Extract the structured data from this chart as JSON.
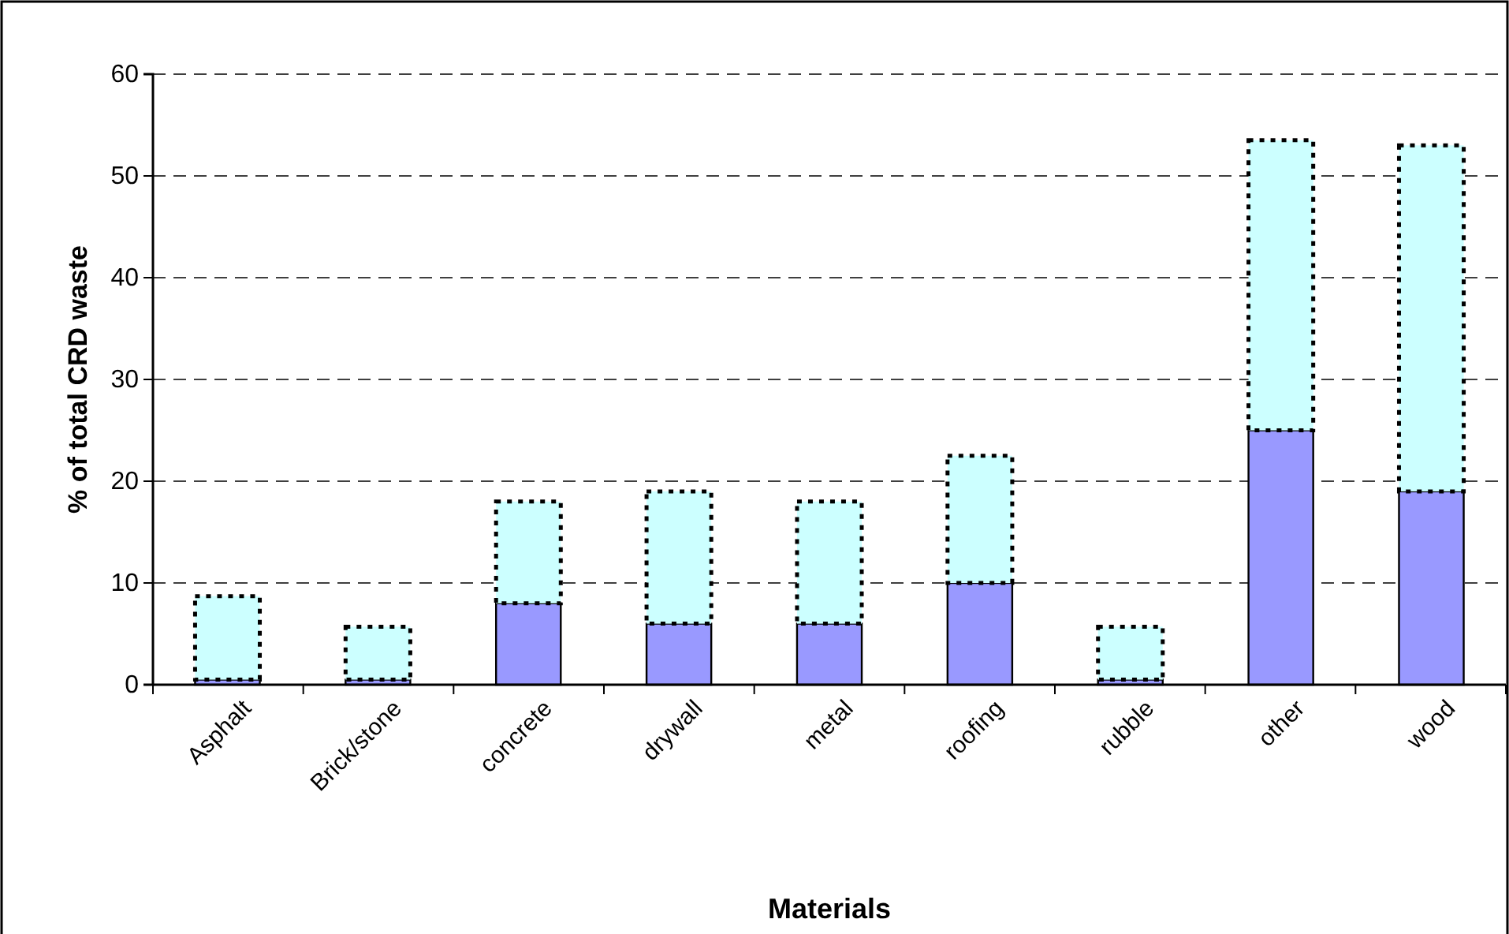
{
  "chart_data": {
    "type": "bar",
    "stacked": true,
    "xlabel": "Materials",
    "ylabel": "% of total CRD waste",
    "categories": [
      "Asphalt",
      "Brick/stone",
      "concrete",
      "drywall",
      "metal",
      "roofing",
      "rubble",
      "other",
      "wood"
    ],
    "series": [
      {
        "color": "#9999ff",
        "line_style": "solid",
        "values": [
          0.5,
          0.5,
          8,
          6,
          6,
          10,
          0.5,
          25,
          19
        ]
      },
      {
        "color": "#ccffff",
        "line_style": "dotted",
        "values": [
          8.2,
          5.2,
          10,
          13,
          12,
          12.5,
          5.2,
          28.5,
          34
        ]
      }
    ],
    "ylim": [
      0,
      60
    ],
    "yticks": [
      0,
      10,
      20,
      30,
      40,
      50,
      60
    ],
    "grid": "y"
  }
}
